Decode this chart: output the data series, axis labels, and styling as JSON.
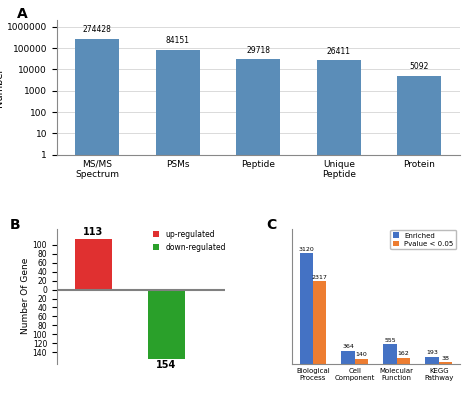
{
  "panel_A": {
    "categories": [
      "MS/MS\nSpectrum",
      "PSMs",
      "Peptide",
      "Unique\nPeptide",
      "Protein"
    ],
    "values": [
      274428,
      84151,
      29718,
      26411,
      5092
    ],
    "bar_color": "#5b8db8",
    "ylabel": "Number",
    "label": "A"
  },
  "panel_B": {
    "values": [
      113,
      -154
    ],
    "colors": [
      "#e03030",
      "#2aa02a"
    ],
    "ylabel": "Number Of Gene",
    "legend_labels": [
      "up-regulated",
      "down-regulated"
    ],
    "legend_colors": [
      "#e03030",
      "#2aa02a"
    ],
    "label": "B"
  },
  "panel_C": {
    "categories": [
      "Biological\nProcess",
      "Cell\nComponent",
      "Molecular\nFunction",
      "KEGG\nPathway"
    ],
    "enriched": [
      3120,
      364,
      555,
      193
    ],
    "pvalue": [
      2317,
      140,
      162,
      38
    ],
    "bar_color_enriched": "#4472c4",
    "bar_color_pvalue": "#ed7d31",
    "legend_labels": [
      "Enriched",
      "Pvalue < 0.05"
    ],
    "label": "C"
  }
}
